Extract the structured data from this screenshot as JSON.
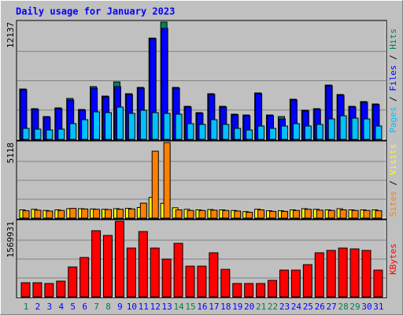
{
  "chart_data": [
    {
      "type": "bar",
      "title": "Daily usage for January 2023",
      "title_color": "#0000ff",
      "legend_separator": " / ",
      "separator_color": "#000000",
      "ylim": [
        0,
        12137
      ],
      "yticks": [
        12137
      ],
      "grid": true,
      "series": [
        {
          "name": "Hits",
          "color": "#00805c",
          "values": [
            5213,
            3177,
            2362,
            3258,
            4236,
            3095,
            5458,
            4480,
            5946,
            4725,
            5376,
            10480,
            12137,
            5376,
            3421,
            2769,
            4725,
            3421,
            2607,
            2525,
            4806,
            2525,
            2362,
            4154,
            3014,
            3177,
            5620,
            4643,
            3421,
            3910,
            3665
          ]
        },
        {
          "name": "Files",
          "color": "#0000ff",
          "values": [
            5130,
            3100,
            2290,
            3180,
            4073,
            3020,
            5295,
            4400,
            5458,
            4650,
            5300,
            10426,
            11486,
            5300,
            3340,
            2690,
            4650,
            3340,
            2530,
            2450,
            4730,
            2450,
            2118,
            4070,
            2940,
            3100,
            5540,
            4560,
            3340,
            3830,
            3590
          ]
        },
        {
          "name": "Pages",
          "color": "#00c0ff",
          "values": [
            1140,
            1059,
            978,
            1059,
            1629,
            2037,
            2851,
            2770,
            3340,
            2688,
            3014,
            2770,
            2688,
            2607,
            1629,
            1548,
            2037,
            1548,
            1140,
            978,
            1385,
            1140,
            1385,
            1629,
            1385,
            1548,
            2118,
            2444,
            2199,
            2118,
            1385
          ]
        }
      ]
    },
    {
      "type": "bar",
      "ylim": [
        0,
        5118
      ],
      "yticks": [
        5118
      ],
      "grid": true,
      "series": [
        {
          "name": "Visits",
          "color": "#ffff00",
          "values": [
            560,
            600,
            520,
            560,
            640,
            640,
            620,
            600,
            640,
            660,
            720,
            1400,
            1000,
            700,
            600,
            560,
            580,
            560,
            520,
            440,
            600,
            500,
            500,
            560,
            640,
            600,
            560,
            640,
            560,
            560,
            560
          ]
        },
        {
          "name": "Sites",
          "color": "#ff8000",
          "values": [
            500,
            540,
            480,
            520,
            660,
            620,
            600,
            580,
            600,
            620,
            1013,
            4530,
            5118,
            560,
            520,
            520,
            540,
            520,
            480,
            400,
            560,
            460,
            460,
            520,
            600,
            540,
            520,
            560,
            520,
            520,
            500
          ]
        }
      ]
    },
    {
      "type": "bar",
      "ylim": [
        0,
        1569931
      ],
      "yticks": [
        1569931
      ],
      "grid": true,
      "categories": [
        "1",
        "2",
        "3",
        "4",
        "5",
        "6",
        "7",
        "8",
        "9",
        "10",
        "11",
        "12",
        "13",
        "14",
        "15",
        "16",
        "17",
        "18",
        "19",
        "20",
        "21",
        "22",
        "23",
        "24",
        "25",
        "26",
        "27",
        "28",
        "29",
        "30",
        "31"
      ],
      "category_colors": [
        "#008040",
        "#0000ff",
        "#0000ff",
        "#0000ff",
        "#0000ff",
        "#0000ff",
        "#008040",
        "#008040",
        "#0000ff",
        "#0000ff",
        "#0000ff",
        "#0000ff",
        "#0000ff",
        "#008040",
        "#008040",
        "#0000ff",
        "#0000ff",
        "#0000ff",
        "#0000ff",
        "#0000ff",
        "#008040",
        "#008040",
        "#0000ff",
        "#0000ff",
        "#0000ff",
        "#0000ff",
        "#0000ff",
        "#008040",
        "#008040",
        "#0000ff",
        "#0000ff"
      ],
      "series": [
        {
          "name": "KBytes",
          "color": "#ff0000",
          "values": [
            294000,
            294000,
            278000,
            327000,
            621000,
            818000,
            1374000,
            1276000,
            1569931,
            1014000,
            1357000,
            1014000,
            785000,
            1112000,
            638000,
            638000,
            916000,
            572000,
            278000,
            278000,
            278000,
            343000,
            556000,
            556000,
            670000,
            916000,
            965000,
            1014000,
            997000,
            965000,
            556000
          ]
        }
      ]
    }
  ]
}
